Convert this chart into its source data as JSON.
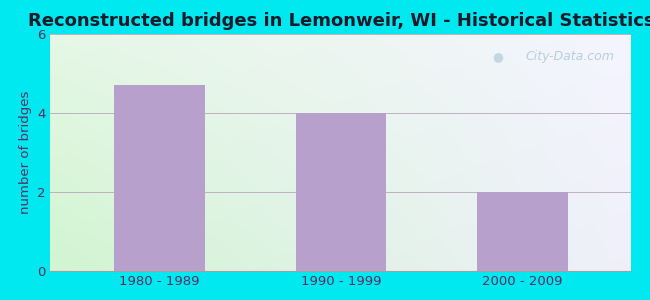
{
  "title": "Reconstructed bridges in Lemonweir, WI - Historical Statistics",
  "categories": [
    "1980 - 1989",
    "1990 - 1999",
    "2000 - 2009"
  ],
  "values": [
    4.7,
    4.0,
    2.0
  ],
  "bar_color": "#b8a0cc",
  "ylabel": "number of bridges",
  "ylim": [
    0,
    6
  ],
  "yticks": [
    0,
    2,
    4,
    6
  ],
  "background_outer": "#00e8f0",
  "title_color": "#1a1a2a",
  "title_fontsize": 13,
  "axis_label_color": "#5a3060",
  "tick_color": "#5a3060",
  "watermark_text": "City-Data.com",
  "watermark_color": "#b0ccd8",
  "grid_color": "#c0b0c0",
  "grad_topleft": [
    0.9,
    0.97,
    0.9,
    1.0
  ],
  "grad_topright": [
    0.96,
    0.96,
    1.0,
    1.0
  ],
  "grad_bottomleft": [
    0.82,
    0.96,
    0.82,
    1.0
  ],
  "grad_bottomright": [
    0.94,
    0.94,
    0.98,
    1.0
  ]
}
